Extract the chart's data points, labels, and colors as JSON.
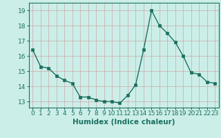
{
  "x": [
    0,
    1,
    2,
    3,
    4,
    5,
    6,
    7,
    8,
    9,
    10,
    11,
    12,
    13,
    14,
    15,
    16,
    17,
    18,
    19,
    20,
    21,
    22,
    23
  ],
  "y": [
    16.4,
    15.3,
    15.2,
    14.7,
    14.4,
    14.2,
    13.3,
    13.3,
    13.1,
    13.0,
    13.0,
    12.9,
    13.4,
    14.1,
    16.4,
    19.0,
    18.0,
    17.5,
    16.9,
    16.0,
    14.9,
    14.8,
    14.3,
    14.2
  ],
  "line_color": "#1a7060",
  "marker_color": "#1a7060",
  "bg_color": "#cceee8",
  "grid_color": "#c8a8a8",
  "xlabel": "Humidex (Indice chaleur)",
  "ylabel_ticks": [
    13,
    14,
    15,
    16,
    17,
    18,
    19
  ],
  "xlim": [
    -0.5,
    23.5
  ],
  "ylim": [
    12.6,
    19.5
  ],
  "xticks": [
    0,
    1,
    2,
    3,
    4,
    5,
    6,
    7,
    8,
    9,
    10,
    11,
    12,
    13,
    14,
    15,
    16,
    17,
    18,
    19,
    20,
    21,
    22,
    23
  ],
  "xlabel_fontsize": 7.5,
  "tick_fontsize": 6.5,
  "line_width": 1.0,
  "marker_size": 2.5
}
